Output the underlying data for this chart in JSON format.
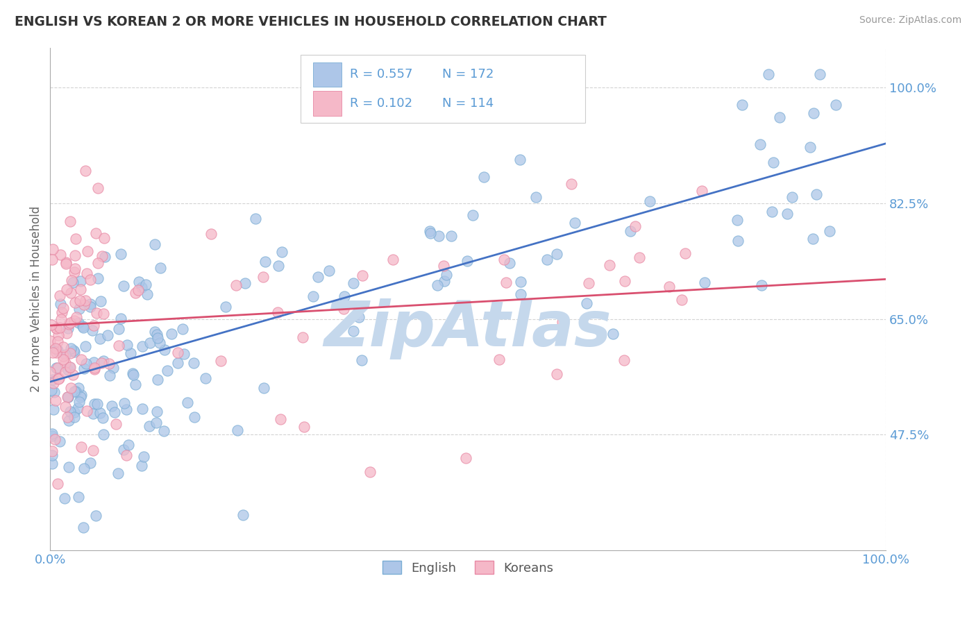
{
  "title": "ENGLISH VS KOREAN 2 OR MORE VEHICLES IN HOUSEHOLD CORRELATION CHART",
  "source": "Source: ZipAtlas.com",
  "ylabel": "2 or more Vehicles in Household",
  "xlim": [
    0.0,
    1.0
  ],
  "ylim": [
    0.3,
    1.06
  ],
  "yticks": [
    0.475,
    0.65,
    0.825,
    1.0
  ],
  "ytick_labels": [
    "47.5%",
    "65.0%",
    "82.5%",
    "100.0%"
  ],
  "xtick_labels": [
    "0.0%",
    "100.0%"
  ],
  "english_R": 0.557,
  "english_N": 172,
  "korean_R": 0.102,
  "korean_N": 114,
  "english_color": "#adc6e8",
  "english_edge_color": "#7aadd4",
  "korean_color": "#f5b8c8",
  "korean_edge_color": "#e888a4",
  "english_line_color": "#4472c4",
  "korean_line_color": "#d94f6f",
  "legend_label_english": "English",
  "legend_label_korean": "Koreans",
  "watermark": "ZipAtlas",
  "watermark_color": "#c5d8ec",
  "background_color": "#ffffff",
  "grid_color": "#c8c8c8",
  "title_color": "#333333",
  "axis_label_color": "#5b9bd5",
  "ylabel_color": "#666666",
  "source_color": "#999999",
  "english_trend_y_start": 0.555,
  "english_trend_y_end": 0.915,
  "korean_trend_y_start": 0.64,
  "korean_trend_y_end": 0.71
}
